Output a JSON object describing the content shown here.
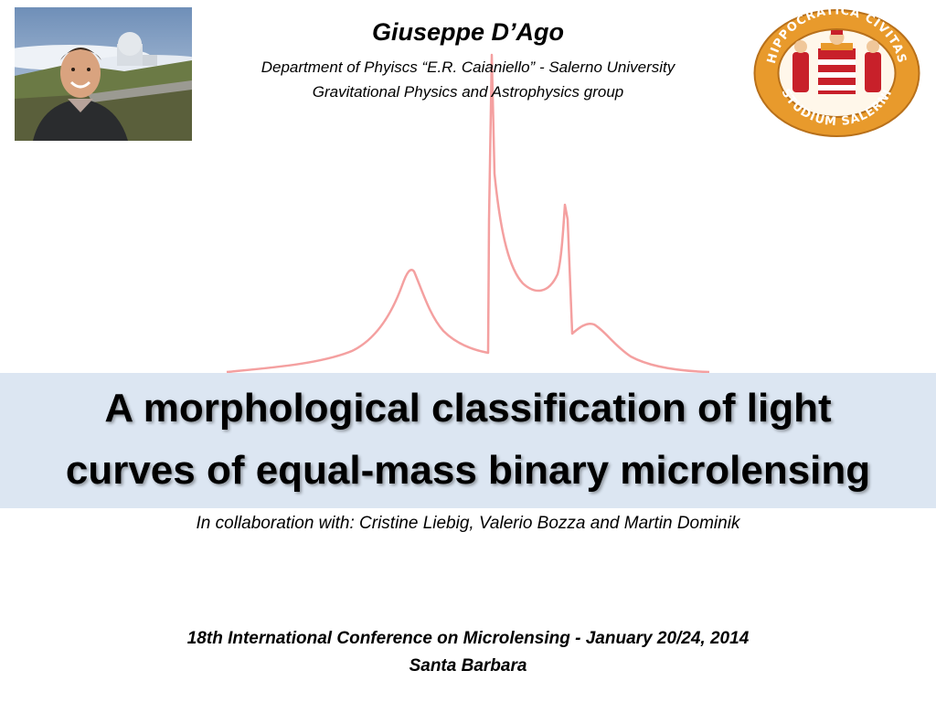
{
  "header": {
    "author": "Giuseppe D’Ago",
    "affiliation_line1": "Department of Phyiscs “E.R. Caianiello” - Salerno University",
    "affiliation_line2": "Gravitational Physics and Astrophysics group"
  },
  "seal": {
    "ring_text_top": "HIPPOCRATICA CIVITAS",
    "ring_text_bottom": "STUDIUM SALERNI"
  },
  "title": {
    "line1": "A morphological classification of light",
    "line2": "curves of equal-mass binary microlensing"
  },
  "collaboration": "In collaboration with: Cristine Liebig, Valerio Bozza and Martin Dominik",
  "conference": {
    "line1": "18th International Conference on Microlensing - January 20/24, 2014",
    "line2": "Santa Barbara"
  },
  "colors": {
    "curve": "#f4a0a0",
    "title_band": "#dce6f2",
    "seal_gold": "#e89a2c",
    "seal_red": "#c8202a"
  }
}
